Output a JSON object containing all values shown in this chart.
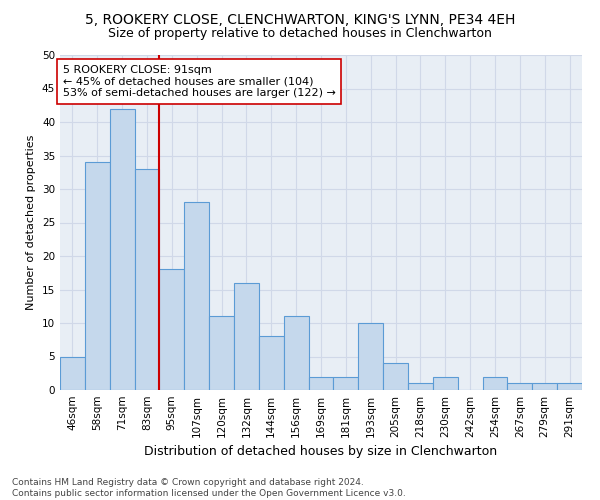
{
  "title": "5, ROOKERY CLOSE, CLENCHWARTON, KING'S LYNN, PE34 4EH",
  "subtitle": "Size of property relative to detached houses in Clenchwarton",
  "xlabel": "Distribution of detached houses by size in Clenchwarton",
  "ylabel": "Number of detached properties",
  "categories": [
    "46sqm",
    "58sqm",
    "71sqm",
    "83sqm",
    "95sqm",
    "107sqm",
    "120sqm",
    "132sqm",
    "144sqm",
    "156sqm",
    "169sqm",
    "181sqm",
    "193sqm",
    "205sqm",
    "218sqm",
    "230sqm",
    "242sqm",
    "254sqm",
    "267sqm",
    "279sqm",
    "291sqm"
  ],
  "values": [
    5,
    34,
    42,
    33,
    18,
    28,
    11,
    16,
    8,
    11,
    2,
    2,
    10,
    4,
    1,
    2,
    0,
    2,
    1,
    1,
    1
  ],
  "bar_color": "#c5d8ec",
  "bar_edge_color": "#5b9bd5",
  "vline_x_index": 4,
  "vline_color": "#cc0000",
  "annotation_line1": "5 ROOKERY CLOSE: 91sqm",
  "annotation_line2": "← 45% of detached houses are smaller (104)",
  "annotation_line3": "53% of semi-detached houses are larger (122) →",
  "annotation_box_color": "#ffffff",
  "annotation_box_edge_color": "#cc0000",
  "ylim": [
    0,
    50
  ],
  "yticks": [
    0,
    5,
    10,
    15,
    20,
    25,
    30,
    35,
    40,
    45,
    50
  ],
  "grid_color": "#d0d8e8",
  "background_color": "#e8eef5",
  "footer_line1": "Contains HM Land Registry data © Crown copyright and database right 2024.",
  "footer_line2": "Contains public sector information licensed under the Open Government Licence v3.0.",
  "title_fontsize": 10,
  "subtitle_fontsize": 9,
  "xlabel_fontsize": 9,
  "ylabel_fontsize": 8,
  "tick_fontsize": 7.5,
  "annotation_fontsize": 8,
  "footer_fontsize": 6.5
}
